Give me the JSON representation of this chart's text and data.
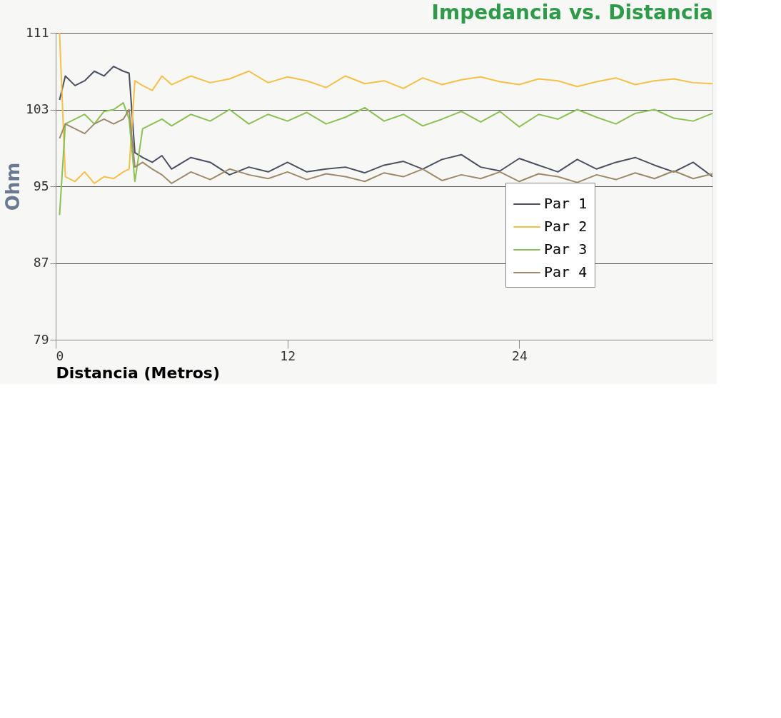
{
  "chart_data": {
    "type": "line",
    "title": "Impedancia vs. Distancia",
    "xlabel": "Distancia (Metros)",
    "ylabel": "Ohm",
    "x": [
      0.2,
      0.5,
      1,
      1.5,
      2,
      2.5,
      3,
      3.5,
      3.8,
      4.1,
      4.5,
      5,
      5.5,
      6,
      7,
      8,
      9,
      10,
      11,
      12,
      13,
      14,
      15,
      16,
      17,
      18,
      19,
      20,
      21,
      22,
      23,
      24,
      25,
      26,
      27,
      28,
      29,
      30,
      31,
      32,
      33,
      34
    ],
    "series": [
      {
        "name": "Par 1",
        "color": "#4a5060",
        "values": [
          104,
          106.5,
          105.5,
          106,
          107,
          106.5,
          107.5,
          107,
          106.8,
          98.5,
          98,
          97.5,
          98.2,
          96.8,
          98,
          97.5,
          96.2,
          97,
          96.5,
          97.5,
          96.5,
          96.8,
          97,
          96.4,
          97.2,
          97.6,
          96.8,
          97.8,
          98.3,
          97,
          96.6,
          97.9,
          97.2,
          96.5,
          97.8,
          96.8,
          97.5,
          98,
          97.2,
          96.5,
          97.5,
          96
        ]
      },
      {
        "name": "Par 2",
        "color": "#f5c048",
        "values": [
          111,
          96,
          95.5,
          96.5,
          95.3,
          96,
          95.8,
          96.5,
          96.8,
          106,
          105.5,
          105,
          106.5,
          105.6,
          106.5,
          105.8,
          106.2,
          107,
          105.8,
          106.4,
          106,
          105.3,
          106.5,
          105.7,
          106,
          105.2,
          106.3,
          105.6,
          106.1,
          106.4,
          105.9,
          105.6,
          106.2,
          106,
          105.4,
          105.9,
          106.3,
          105.6,
          106,
          106.2,
          105.8,
          105.7
        ]
      },
      {
        "name": "Par 3",
        "color": "#8cc055",
        "values": [
          92,
          101.5,
          102,
          102.5,
          101.5,
          102.8,
          103,
          103.7,
          102,
          95.5,
          101,
          101.5,
          102,
          101.3,
          102.5,
          101.8,
          103,
          101.5,
          102.5,
          101.8,
          102.7,
          101.5,
          102.2,
          103.2,
          101.8,
          102.5,
          101.3,
          102,
          102.8,
          101.7,
          102.8,
          101.2,
          102.5,
          102,
          103,
          102.2,
          101.5,
          102.6,
          103,
          102.1,
          101.8,
          102.6
        ]
      },
      {
        "name": "Par 4",
        "color": "#9c8a6a",
        "values": [
          100,
          101.5,
          101,
          100.5,
          101.5,
          102,
          101.5,
          102,
          103,
          97,
          97.5,
          96.8,
          96.2,
          95.3,
          96.5,
          95.7,
          96.8,
          96.2,
          95.8,
          96.5,
          95.7,
          96.3,
          96,
          95.5,
          96.4,
          96,
          96.8,
          95.6,
          96.2,
          95.8,
          96.5,
          95.5,
          96.3,
          96,
          95.4,
          96.2,
          95.7,
          96.4,
          95.8,
          96.6,
          95.8,
          96.3
        ]
      }
    ],
    "xlim": [
      0,
      34
    ],
    "xticks": [
      0,
      12,
      24
    ],
    "ylim": [
      79,
      111
    ],
    "yticks": [
      79,
      87,
      95,
      103,
      111
    ],
    "grid": "y",
    "legend": "right",
    "marker": "none",
    "line_style": "solid"
  }
}
